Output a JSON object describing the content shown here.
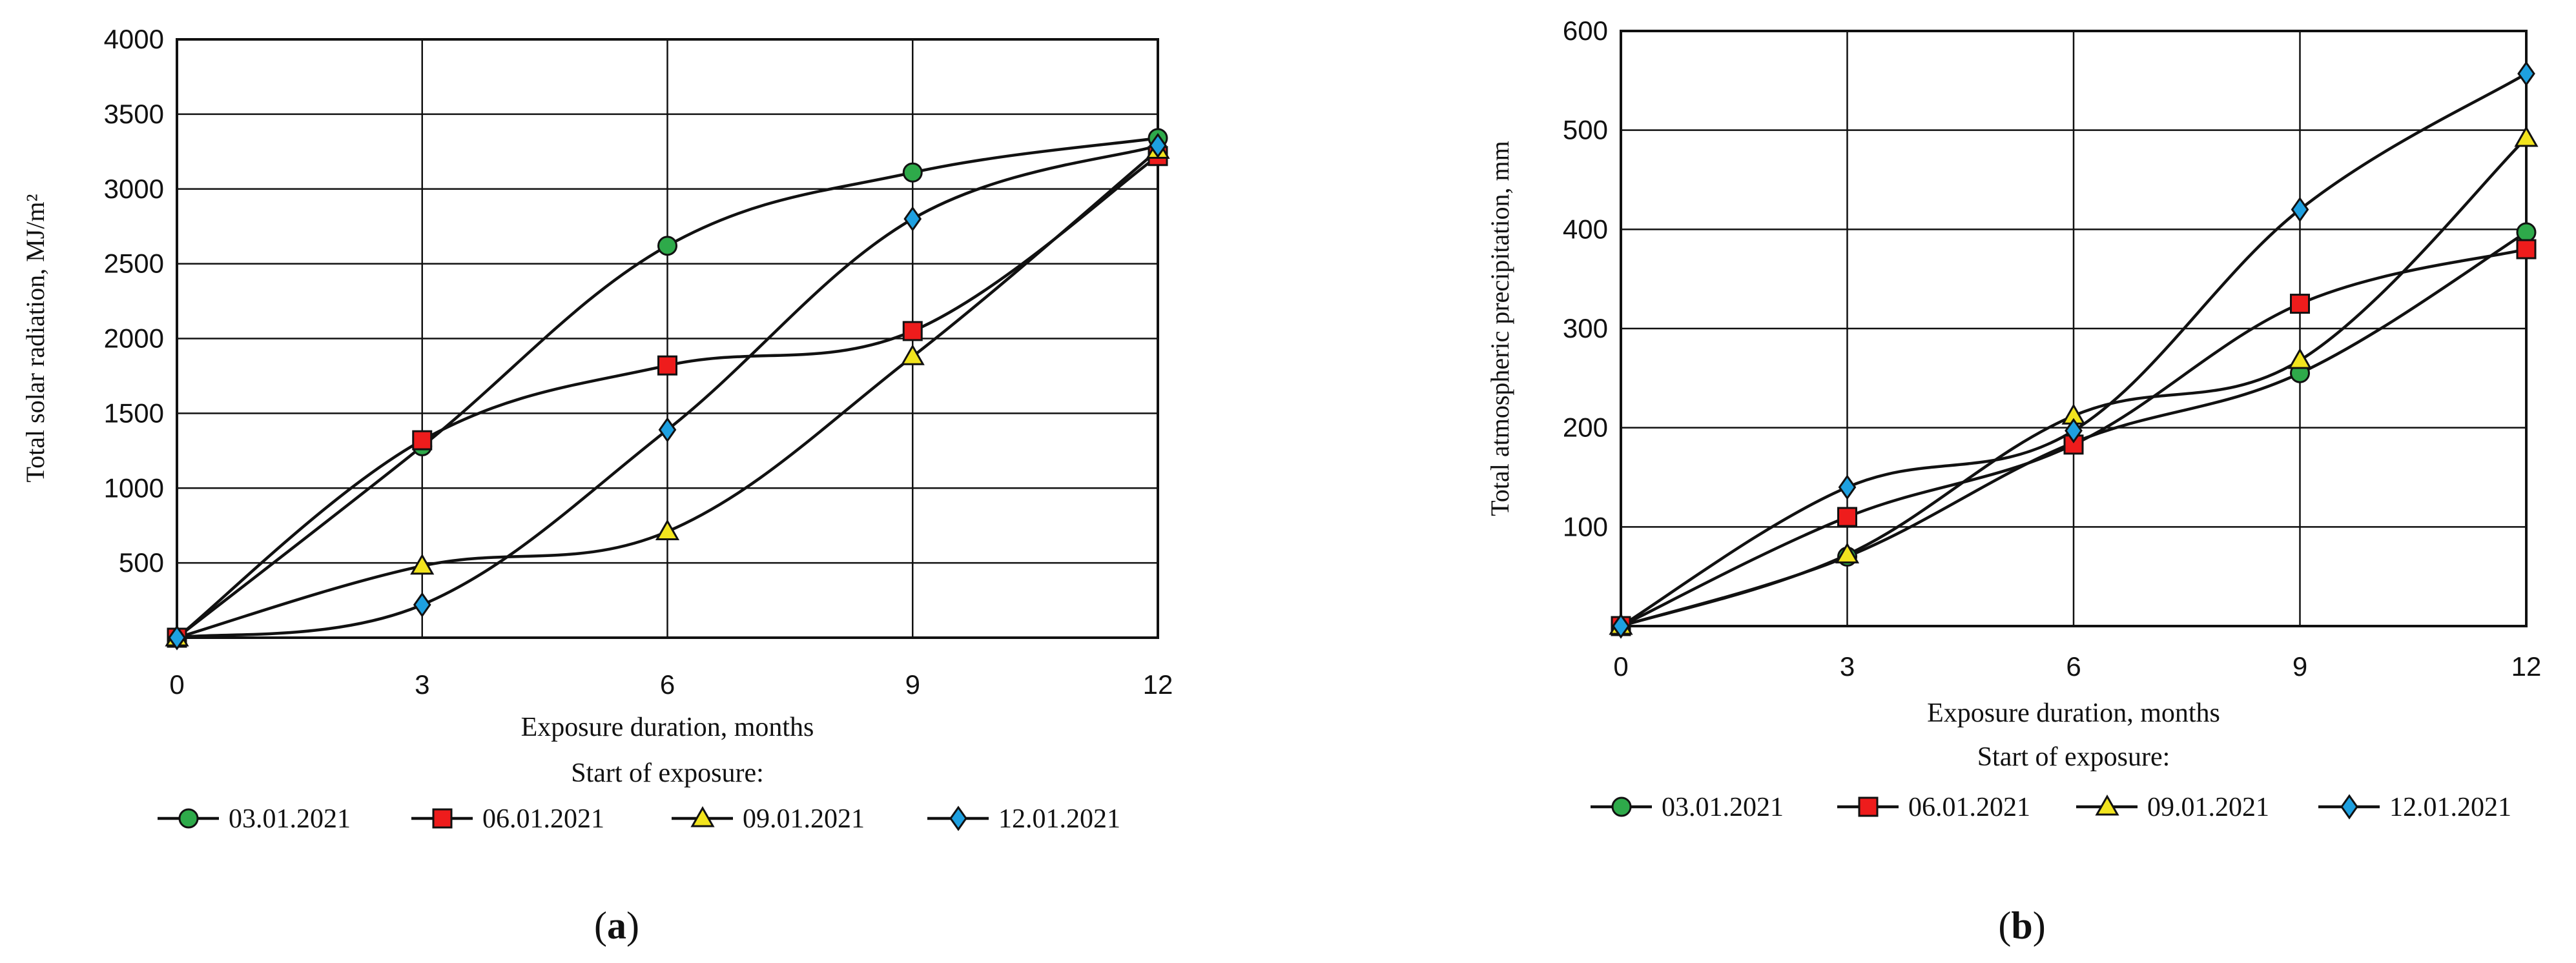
{
  "chart_data": [
    {
      "type": "line",
      "panel": "a",
      "xlabel": "Exposure duration, months",
      "ylabel": "Total solar radiation, MJ/m²",
      "x": [
        0,
        3,
        6,
        9,
        12
      ],
      "xlim": [
        0,
        12
      ],
      "ylim": [
        0,
        4000
      ],
      "xticks": [
        0,
        3,
        6,
        9,
        12
      ],
      "yticks": [
        500,
        1000,
        1500,
        2000,
        2500,
        3000,
        3500,
        4000
      ],
      "grid": true,
      "legend_title": "Start of exposure:",
      "legend_position": "bottom",
      "series": [
        {
          "name": "03.01.2021",
          "marker": "circle",
          "color": "#2eaa4a",
          "values": [
            0,
            1280,
            2620,
            3110,
            3340
          ]
        },
        {
          "name": "06.01.2021",
          "marker": "square",
          "color": "#ee1c1c",
          "values": [
            0,
            1320,
            1820,
            2050,
            3220
          ]
        },
        {
          "name": "09.01.2021",
          "marker": "triangle",
          "color": "#f2e41e",
          "values": [
            0,
            480,
            710,
            1880,
            3260
          ]
        },
        {
          "name": "12.01.2021",
          "marker": "diamond",
          "color": "#1ea0e0",
          "values": [
            0,
            220,
            1390,
            2800,
            3290
          ]
        }
      ]
    },
    {
      "type": "line",
      "panel": "b",
      "xlabel": "Exposure duration, months",
      "ylabel": "Total atmospheric precipitation, mm",
      "x": [
        0,
        3,
        6,
        9,
        12
      ],
      "xlim": [
        0,
        12
      ],
      "ylim": [
        0,
        600
      ],
      "xticks": [
        0,
        3,
        6,
        9,
        12
      ],
      "yticks": [
        100,
        200,
        300,
        400,
        500,
        600
      ],
      "grid": true,
      "legend_title": "Start of exposure:",
      "legend_position": "bottom",
      "series": [
        {
          "name": "03.01.2021",
          "marker": "circle",
          "color": "#2eaa4a",
          "values": [
            0,
            70,
            185,
            255,
            397
          ]
        },
        {
          "name": "06.01.2021",
          "marker": "square",
          "color": "#ee1c1c",
          "values": [
            0,
            110,
            183,
            325,
            380
          ]
        },
        {
          "name": "09.01.2021",
          "marker": "triangle",
          "color": "#f2e41e",
          "values": [
            0,
            72,
            212,
            268,
            492
          ]
        },
        {
          "name": "12.01.2021",
          "marker": "diamond",
          "color": "#1ea0e0",
          "values": [
            0,
            140,
            197,
            420,
            557
          ]
        }
      ]
    }
  ],
  "panel_labels": [
    "a",
    "b"
  ]
}
